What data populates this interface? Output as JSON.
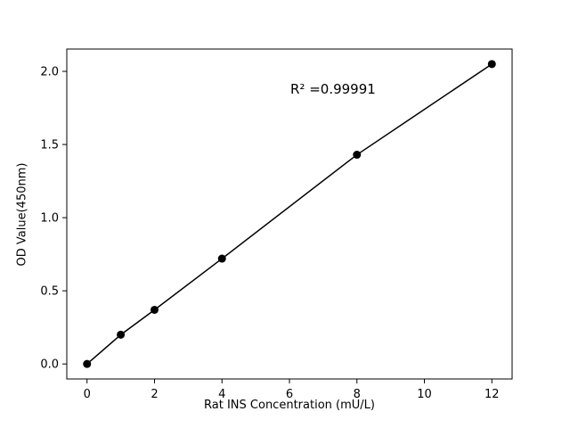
{
  "chart_data": {
    "type": "line",
    "x": [
      0,
      1,
      2,
      4,
      8,
      12
    ],
    "y": [
      0.0,
      0.2,
      0.37,
      0.72,
      1.43,
      2.05
    ],
    "title": "",
    "xlabel": "Rat INS Concentration (mU/L)",
    "ylabel": "OD Value(450nm)",
    "annotation": "R² =0.99991",
    "xticks": [
      0,
      2,
      4,
      6,
      8,
      10,
      12
    ],
    "xtick_labels": [
      "0",
      "2",
      "4",
      "6",
      "8",
      "10",
      "12"
    ],
    "yticks": [
      0.0,
      0.5,
      1.0,
      1.5,
      2.0
    ],
    "ytick_labels": [
      "0.0",
      "0.5",
      "1.0",
      "1.5",
      "2.0"
    ],
    "xlim": [
      -0.6,
      12.6
    ],
    "ylim": [
      -0.1025,
      2.1525
    ],
    "grid": false,
    "legend_position": "none",
    "line_color": "#000000",
    "marker_color": "#000000",
    "background_color": "#ffffff"
  }
}
